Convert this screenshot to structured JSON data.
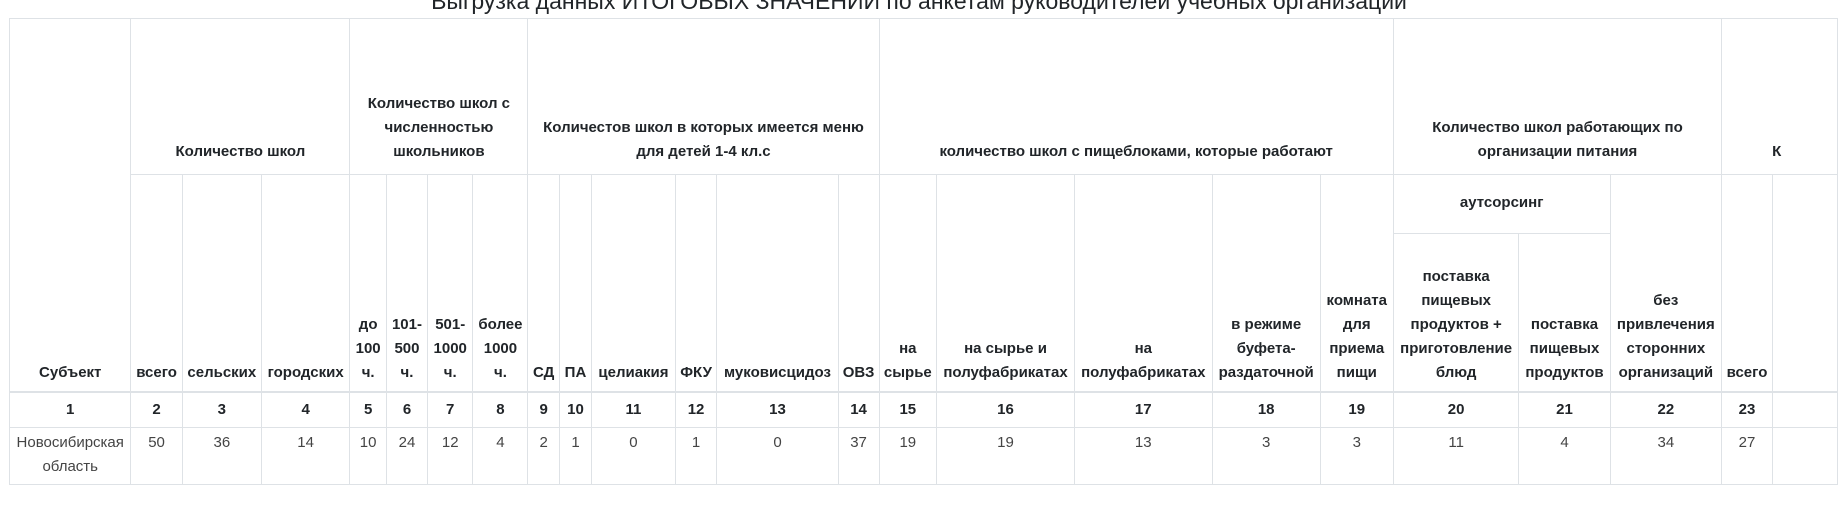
{
  "title": "Выгрузка данных ИТОГОВЫХ ЗНАЧЕНИЙ по анкетам руководителей учебных организаций",
  "header": {
    "subject": "Субъект",
    "groups": [
      {
        "label": "Количество школ",
        "span": 3
      },
      {
        "label": "Количество школ с численностью школьников",
        "span": 4
      },
      {
        "label": "Количестов школ в которых имеется меню для детей 1-4 кл.с",
        "span": 6
      },
      {
        "label": "количество школ с пищеблоками, которые работают",
        "span": 5
      },
      {
        "label": "Количество школ работающих по организации питания",
        "span": 3
      },
      {
        "label": "К",
        "span": 2
      }
    ],
    "columns": [
      "всего",
      "сельских",
      "городских",
      "до 100 ч.",
      "101-500 ч.",
      "501-1000 ч.",
      "более 1000 ч.",
      "СД",
      "ПА",
      "целиакия",
      "ФКУ",
      "муковисцидоз",
      "ОВЗ",
      "на сырье",
      "на сырье и полуфабрикатах",
      "на полуфабрикатах",
      "в режиме буфета-раздаточной",
      "комната для приема пищи",
      "поставка пищевых продуктов + приготовление блюд",
      "поставка пищевых продуктов",
      "без привлечения сторонних организаций",
      "всего"
    ],
    "outsourcing": "аутсорсинг"
  },
  "column_numbers": [
    1,
    2,
    3,
    4,
    5,
    6,
    7,
    8,
    9,
    10,
    11,
    12,
    13,
    14,
    15,
    16,
    17,
    18,
    19,
    20,
    21,
    22,
    23
  ],
  "rows": [
    [
      "Новосибирская область",
      50,
      36,
      14,
      10,
      24,
      12,
      4,
      2,
      1,
      0,
      1,
      0,
      37,
      19,
      19,
      13,
      3,
      3,
      11,
      4,
      34,
      27
    ]
  ]
}
